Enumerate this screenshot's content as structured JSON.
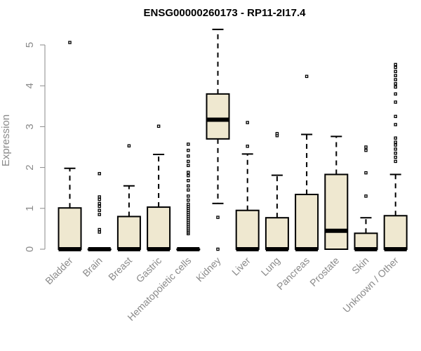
{
  "chart_data": {
    "type": "boxplot",
    "title": "ENSG00000260173 - RP11-2I17.4",
    "xlabel": "",
    "ylabel": "Expression",
    "ylim": [
      0,
      5.5
    ],
    "yticks": [
      0,
      1,
      2,
      3,
      4,
      5
    ],
    "grid": false,
    "colors": {
      "box_fill": "#efe8d0",
      "stroke": "#000000",
      "axis": "#8a8a8a"
    },
    "categories": [
      "Bladder",
      "Brain",
      "Breast",
      "Gastric",
      "Hematopoietic cells",
      "Kidney",
      "Liver",
      "Lung",
      "Pancreas",
      "Prostate",
      "Skin",
      "Unknown / Other"
    ],
    "boxes": [
      {
        "category": "Bladder",
        "whisker_low": 0,
        "q1": 0,
        "median": 0,
        "q3": 1.01,
        "whisker_high": 1.98,
        "outliers": [
          5.06
        ]
      },
      {
        "category": "Brain",
        "whisker_low": 0,
        "q1": 0,
        "median": 0,
        "q3": 0,
        "whisker_high": 0,
        "outliers": [
          0.42,
          0.48,
          0.85,
          0.95,
          1.05,
          1.12,
          1.22,
          1.28,
          1.85
        ]
      },
      {
        "category": "Breast",
        "whisker_low": 0,
        "q1": 0,
        "median": 0,
        "q3": 0.8,
        "whisker_high": 1.55,
        "outliers": [
          2.53
        ]
      },
      {
        "category": "Gastric",
        "whisker_low": 0,
        "q1": 0,
        "median": 0,
        "q3": 1.03,
        "whisker_high": 2.32,
        "outliers": [
          3.01
        ]
      },
      {
        "category": "Hematopoietic cells",
        "whisker_low": 0,
        "q1": 0,
        "median": 0,
        "q3": 0,
        "whisker_high": 0,
        "outliers": [
          0.38,
          0.42,
          0.46,
          0.5,
          0.55,
          0.6,
          0.65,
          0.7,
          0.75,
          0.8,
          0.85,
          0.9,
          0.95,
          1.0,
          1.05,
          1.1,
          1.2,
          1.3,
          1.45,
          1.55,
          1.68,
          1.8,
          1.88,
          2.05,
          2.15,
          2.28,
          2.42,
          2.57
        ]
      },
      {
        "category": "Kidney",
        "whisker_low": 1.12,
        "q1": 2.7,
        "median": 3.17,
        "q3": 3.8,
        "whisker_high": 5.38,
        "outliers": [
          0.78,
          0.0
        ]
      },
      {
        "category": "Liver",
        "whisker_low": 0,
        "q1": 0,
        "median": 0,
        "q3": 0.95,
        "whisker_high": 2.33,
        "outliers": [
          2.52,
          3.1
        ]
      },
      {
        "category": "Lung",
        "whisker_low": 0,
        "q1": 0,
        "median": 0,
        "q3": 0.77,
        "whisker_high": 1.81,
        "outliers": [
          2.78,
          2.83
        ]
      },
      {
        "category": "Pancreas",
        "whisker_low": 0,
        "q1": 0,
        "median": 0,
        "q3": 1.34,
        "whisker_high": 2.81,
        "outliers": [
          4.23
        ]
      },
      {
        "category": "Prostate",
        "whisker_low": 0,
        "q1": 0,
        "median": 0.45,
        "q3": 1.83,
        "whisker_high": 2.76,
        "outliers": []
      },
      {
        "category": "Skin",
        "whisker_low": 0,
        "q1": 0,
        "median": 0,
        "q3": 0.39,
        "whisker_high": 0.77,
        "outliers": [
          1.3,
          1.87,
          2.42,
          2.5
        ]
      },
      {
        "category": "Unknown / Other",
        "whisker_low": 0,
        "q1": 0,
        "median": 0,
        "q3": 0.82,
        "whisker_high": 1.83,
        "outliers": [
          2.15,
          2.25,
          2.35,
          2.45,
          2.55,
          2.62,
          2.72,
          3.05,
          3.25,
          3.6,
          3.8,
          3.97,
          4.05,
          4.15,
          4.25,
          4.35,
          4.45,
          4.52
        ]
      }
    ]
  }
}
